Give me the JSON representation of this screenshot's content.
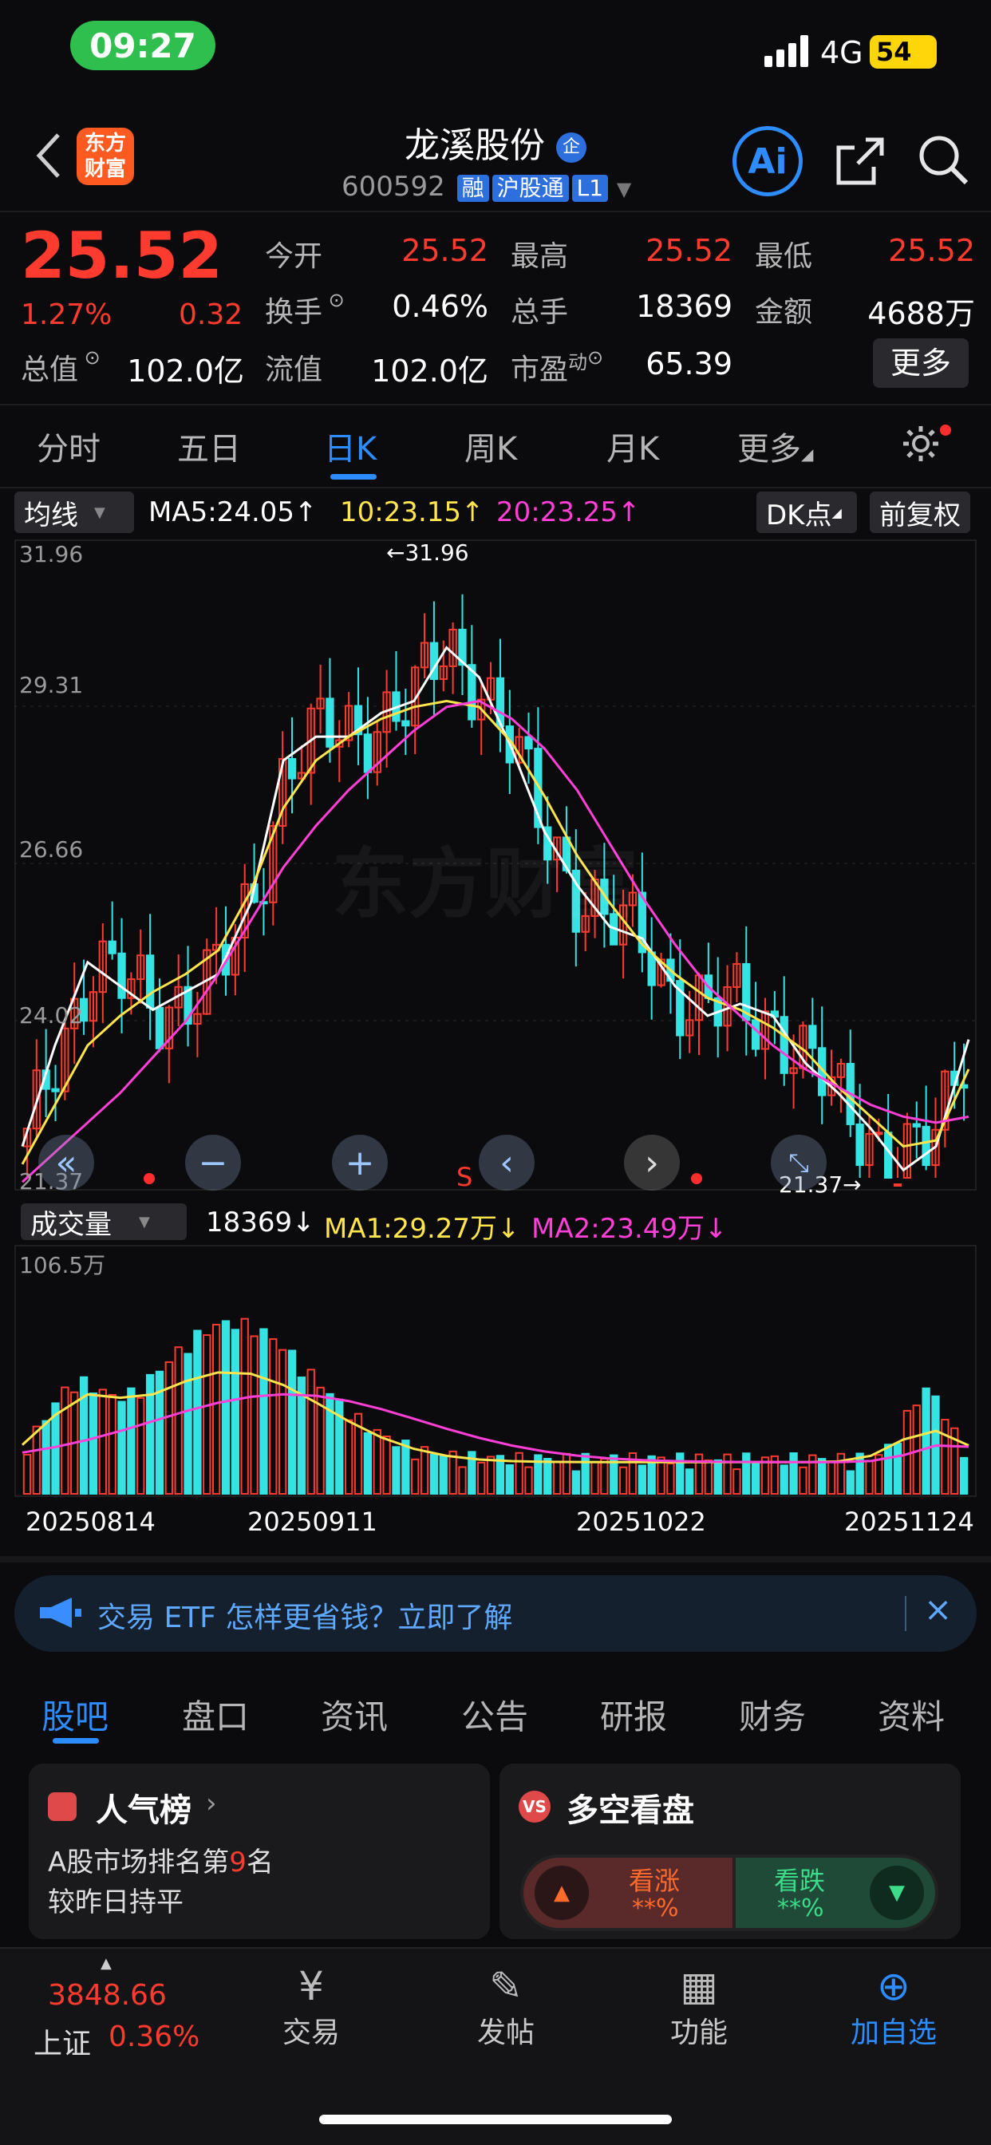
{
  "status_bar": {
    "time": "09:27",
    "network": "4G",
    "battery": "54"
  },
  "header": {
    "logo_text": "东方\n财富",
    "name": "龙溪股份",
    "name_badge": "企",
    "code": "600592",
    "tags": [
      "融",
      "沪股通",
      "L1"
    ]
  },
  "quote": {
    "price": "25.52",
    "change_pct": "1.27%",
    "change": "0.32",
    "open_label": "今开",
    "open": "25.52",
    "high_label": "最高",
    "high": "25.52",
    "low_label": "最低",
    "low": "25.52",
    "turnover_label": "换手",
    "turnover": "0.46%",
    "volume_label": "总手",
    "volume": "18369",
    "amount_label": "金额",
    "amount": "4688万",
    "mktcap_label": "总值",
    "mktcap": "102.0亿",
    "float_label": "流值",
    "float": "102.0亿",
    "pe_label": "市盈",
    "pe_sup": "动",
    "pe": "65.39",
    "more": "更多"
  },
  "chart_tabs": [
    "分时",
    "五日",
    "日K",
    "周K",
    "月K",
    "更多"
  ],
  "active_tab": "日K",
  "kline": {
    "ma_selector": "均线",
    "ma5": "MA5:24.05↑",
    "ma10": "10:23.15↑",
    "ma20": "20:23.25↑",
    "dk_button": "DK点",
    "adjust_button": "前复权",
    "y_ticks": [
      "31.96",
      "29.31",
      "26.66",
      "24.02",
      "21.37"
    ],
    "max_marker": "←31.96",
    "min_marker": "21.37→",
    "sell_marker": "S"
  },
  "volume": {
    "selector": "成交量",
    "value": "18369↓",
    "ma1": "MA1:29.27万↓",
    "ma2": "MA2:23.49万↓",
    "y_max": "106.5万",
    "dates": [
      "20250814",
      "20250911",
      "20251022",
      "20251124"
    ]
  },
  "colors": {
    "up": "#ff3b30",
    "down": "#35e3e3",
    "ma5": "#ffffff",
    "ma10": "#ffe44d",
    "ma20": "#ff3fd6",
    "accent": "#2d8cff"
  },
  "chart_data": {
    "type": "candlestick",
    "title": "",
    "ylim": [
      21.37,
      31.96
    ],
    "x_labels": [
      "20250814",
      "20250911",
      "20251022",
      "20251124"
    ],
    "series": [
      {
        "name": "MA5",
        "values": [
          21.9,
          23.6,
          25.0,
          24.6,
          24.2,
          24.5,
          24.8,
          26.0,
          28.4,
          28.8,
          28.8,
          29.2,
          29.4,
          30.3,
          29.8,
          28.6,
          27.2,
          26.3,
          25.6,
          25.4,
          24.6,
          24.1,
          24.3,
          24.1,
          23.3,
          22.8,
          22.2,
          21.5,
          21.9,
          23.7
        ]
      },
      {
        "name": "10",
        "values": [
          21.6,
          22.6,
          23.6,
          24.1,
          24.5,
          24.8,
          25.2,
          26.2,
          27.6,
          28.4,
          28.8,
          29.1,
          29.3,
          29.4,
          29.3,
          28.7,
          27.8,
          26.8,
          26.0,
          25.3,
          24.8,
          24.4,
          24.2,
          23.9,
          23.5,
          22.9,
          22.4,
          21.9,
          22.0,
          23.2
        ]
      },
      {
        "name": "20",
        "values": [
          21.3,
          21.8,
          22.3,
          22.8,
          23.4,
          24.0,
          24.8,
          25.7,
          26.6,
          27.3,
          27.9,
          28.4,
          28.9,
          29.3,
          29.4,
          29.1,
          28.6,
          27.9,
          27.0,
          26.1,
          25.3,
          24.6,
          24.1,
          23.6,
          23.2,
          22.9,
          22.6,
          22.4,
          22.3,
          22.4
        ]
      }
    ],
    "volume": {
      "ylim": [
        0,
        106.5
      ],
      "unit": "万",
      "ma1": 29.27,
      "ma2": 23.49
    }
  },
  "promo": {
    "text": "交易 ETF 怎样更省钱？立即了解"
  },
  "info_tabs": [
    "股吧",
    "盘口",
    "资讯",
    "公告",
    "研报",
    "财务",
    "资料"
  ],
  "popularity": {
    "title": "人气榜",
    "line1_a": "A股市场排名第",
    "rank": "9",
    "line1_b": "名",
    "line2": "较昨日持平"
  },
  "bullbear": {
    "title": "多空看盘",
    "up_label": "看涨",
    "up_value": "**%",
    "down_label": "看跌",
    "down_value": "**%"
  },
  "bottom_nav": {
    "index_value": "3848.66",
    "index_name": "上证",
    "index_change": "0.36%",
    "trade": "交易",
    "post": "发帖",
    "func": "功能",
    "add": "加自选"
  }
}
